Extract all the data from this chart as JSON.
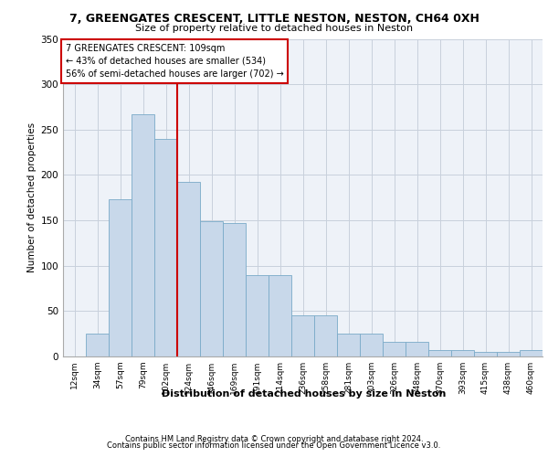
{
  "title1": "7, GREENGATES CRESCENT, LITTLE NESTON, NESTON, CH64 0XH",
  "title2": "Size of property relative to detached houses in Neston",
  "xlabel": "Distribution of detached houses by size in Neston",
  "ylabel": "Number of detached properties",
  "footer1": "Contains HM Land Registry data © Crown copyright and database right 2024.",
  "footer2": "Contains public sector information licensed under the Open Government Licence v3.0.",
  "annotation_line1": "7 GREENGATES CRESCENT: 109sqm",
  "annotation_line2": "← 43% of detached houses are smaller (534)",
  "annotation_line3": "56% of semi-detached houses are larger (702) →",
  "bar_labels": [
    "12sqm",
    "34sqm",
    "57sqm",
    "79sqm",
    "102sqm",
    "124sqm",
    "146sqm",
    "169sqm",
    "191sqm",
    "214sqm",
    "236sqm",
    "258sqm",
    "281sqm",
    "303sqm",
    "326sqm",
    "348sqm",
    "370sqm",
    "393sqm",
    "415sqm",
    "438sqm",
    "460sqm"
  ],
  "bar_heights": [
    0,
    25,
    173,
    267,
    240,
    192,
    149,
    147,
    90,
    90,
    45,
    45,
    25,
    25,
    16,
    16,
    7,
    7,
    5,
    5,
    7
  ],
  "bar_color": "#c8d8ea",
  "bar_edge_color": "#7aaac8",
  "vline_color": "#cc0000",
  "vline_x": 4.5,
  "ylim": [
    0,
    350
  ],
  "yticks": [
    0,
    50,
    100,
    150,
    200,
    250,
    300,
    350
  ],
  "grid_color": "#c8d0dc",
  "annotation_box_color": "#cc0000",
  "bg_color": "#eef2f8"
}
